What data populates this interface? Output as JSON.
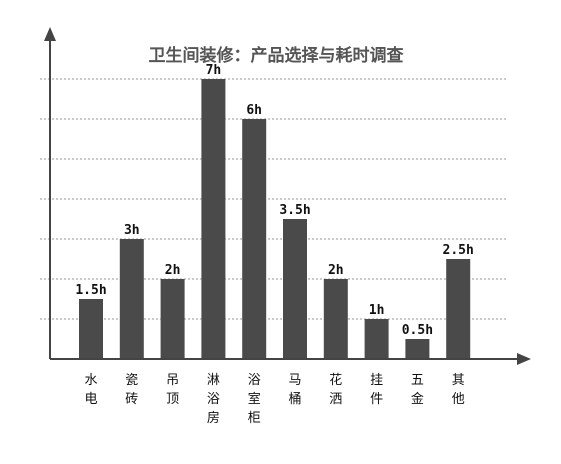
{
  "chart_data": {
    "type": "bar",
    "title": "卫生间装修：产品选择与耗时调查",
    "categories": [
      "水电",
      "瓷砖",
      "吊顶",
      "淋浴房",
      "浴室柜",
      "马桶",
      "花洒",
      "挂件",
      "五金",
      "其他"
    ],
    "values": [
      1.5,
      3,
      2,
      7,
      6,
      3.5,
      2,
      1,
      0.5,
      2.5
    ],
    "value_labels": [
      "1.5h",
      "3h",
      "2h",
      "7h",
      "6h",
      "3.5h",
      "2h",
      "1h",
      "0.5h",
      "2.5h"
    ],
    "ylim": [
      0,
      7
    ],
    "grid": true,
    "legend": "none",
    "colors": {
      "bar": "#4a4a4a",
      "axis": "#444444",
      "grid": "#9a9a9a",
      "title": "#555555",
      "text": "#111111"
    }
  }
}
